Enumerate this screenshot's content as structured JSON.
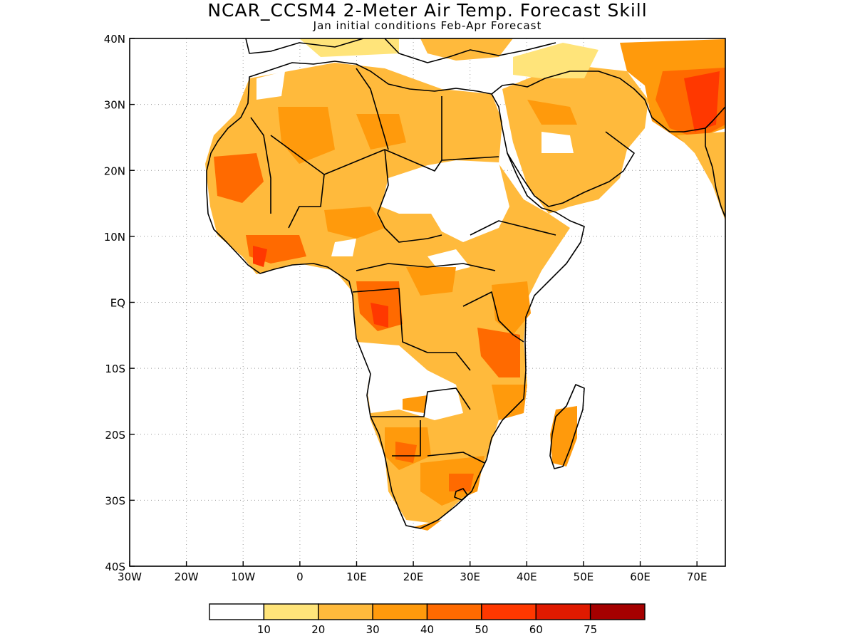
{
  "title": "NCAR_CCSM4 2-Meter Air Temp. Forecast Skill",
  "subtitle": "Jan initial conditions  Feb-Apr Forecast",
  "axes": {
    "lon_range": [
      -30,
      75
    ],
    "lat_range": [
      -40,
      40
    ],
    "x_ticks": [
      "30W",
      "20W",
      "10W",
      "0",
      "10E",
      "20E",
      "30E",
      "40E",
      "50E",
      "60E",
      "70E"
    ],
    "y_ticks": [
      "40N",
      "30N",
      "20N",
      "10N",
      "EQ",
      "10S",
      "20S",
      "30S",
      "40S"
    ],
    "grid": "dotted"
  },
  "legend": {
    "placement": "bottom",
    "labels": [
      "10",
      "20",
      "30",
      "40",
      "50",
      "60",
      "75"
    ],
    "colors": [
      "#ffffff",
      "#ffe47a",
      "#ffba3c",
      "#ff9a0c",
      "#ff6a00",
      "#ff3800",
      "#e01a00",
      "#a50000"
    ]
  },
  "colors": {
    "land_outline": "#000000",
    "grid": "#9a9a9a"
  }
}
